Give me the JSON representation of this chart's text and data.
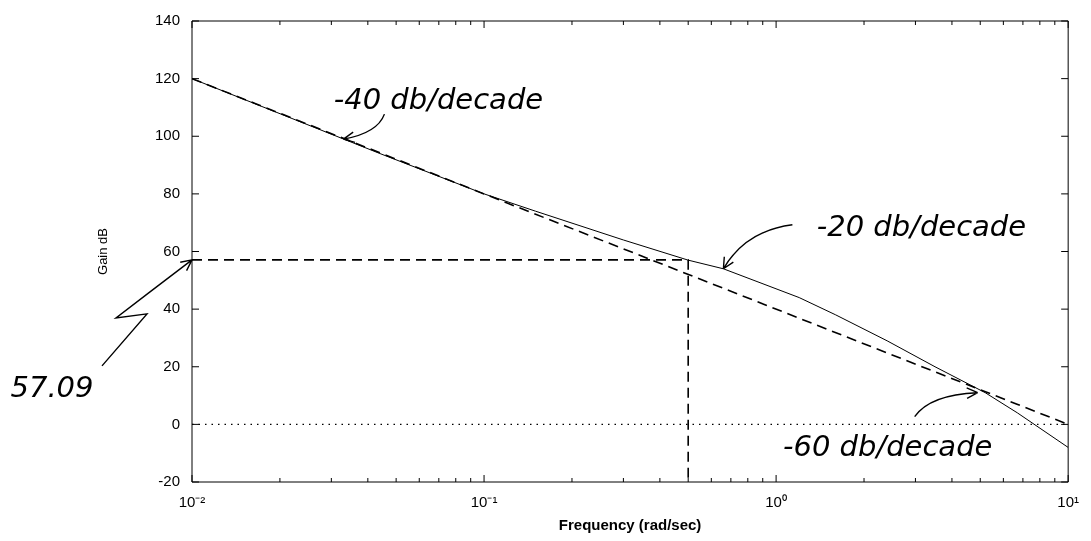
{
  "chart_data": {
    "type": "line",
    "xlabel": "Frequency (rad/sec)",
    "ylabel": "Gain dB",
    "log": "x",
    "marker": "none",
    "xlim": [
      0.01,
      10
    ],
    "xticks": [
      {
        "value": 0.01,
        "label": "10⁻²"
      },
      {
        "value": 0.02,
        "label": null
      },
      {
        "value": 0.03,
        "label": null
      },
      {
        "value": 0.04,
        "label": null
      },
      {
        "value": 0.05,
        "label": null
      },
      {
        "value": 0.06,
        "label": null
      },
      {
        "value": 0.07,
        "label": null
      },
      {
        "value": 0.08,
        "label": null
      },
      {
        "value": 0.09,
        "label": null
      },
      {
        "value": 0.1,
        "label": "10⁻¹"
      },
      {
        "value": 0.2,
        "label": null
      },
      {
        "value": 0.3,
        "label": null
      },
      {
        "value": 0.4,
        "label": null
      },
      {
        "value": 0.5,
        "label": null
      },
      {
        "value": 0.6,
        "label": null
      },
      {
        "value": 0.7,
        "label": null
      },
      {
        "value": 0.8,
        "label": null
      },
      {
        "value": 0.9,
        "label": null
      },
      {
        "value": 1,
        "label": "10⁰"
      },
      {
        "value": 2,
        "label": null
      },
      {
        "value": 3,
        "label": null
      },
      {
        "value": 4,
        "label": null
      },
      {
        "value": 5,
        "label": null
      },
      {
        "value": 6,
        "label": null
      },
      {
        "value": 7,
        "label": null
      },
      {
        "value": 8,
        "label": null
      },
      {
        "value": 9,
        "label": null
      },
      {
        "value": 10,
        "label": "10¹"
      }
    ],
    "ylim": [
      -20,
      140
    ],
    "yticks": [
      -20,
      0,
      20,
      40,
      60,
      80,
      100,
      120,
      140
    ],
    "series": [
      {
        "color": "#000000",
        "line_style": "solid",
        "x": [
          0.01,
          0.044,
          0.1,
          0.15,
          0.3,
          0.5,
          0.66,
          1.2,
          1.6,
          2.4,
          3.5,
          5.2,
          6.7,
          10
        ],
        "values": [
          120,
          94,
          80,
          74,
          64,
          57,
          54,
          44,
          38,
          29,
          20,
          11,
          4,
          -8
        ]
      },
      {
        "color": "#000000",
        "line_style": "dashed",
        "x": [
          0.01,
          10
        ],
        "values": [
          120,
          0
        ]
      },
      {
        "color": "#000000",
        "line_style": "dashed",
        "x": [
          0.01,
          0.5,
          0.5
        ],
        "values": [
          57.09,
          57.09,
          -20
        ]
      }
    ],
    "ref_lines": [
      {
        "axis": "y",
        "value": 0,
        "color": "#000000",
        "line_style": "dotted"
      }
    ],
    "annotations": [
      {
        "text": "-40 db/decade",
        "x": 0.033,
        "y": 99
      },
      {
        "text": "-20 db/decade",
        "x": 0.66,
        "y": 54
      },
      {
        "text": "-60 db/decade",
        "x": 4.9,
        "y": 11
      },
      {
        "text": "57.09",
        "x": 0.01,
        "y": 57.09
      }
    ]
  }
}
